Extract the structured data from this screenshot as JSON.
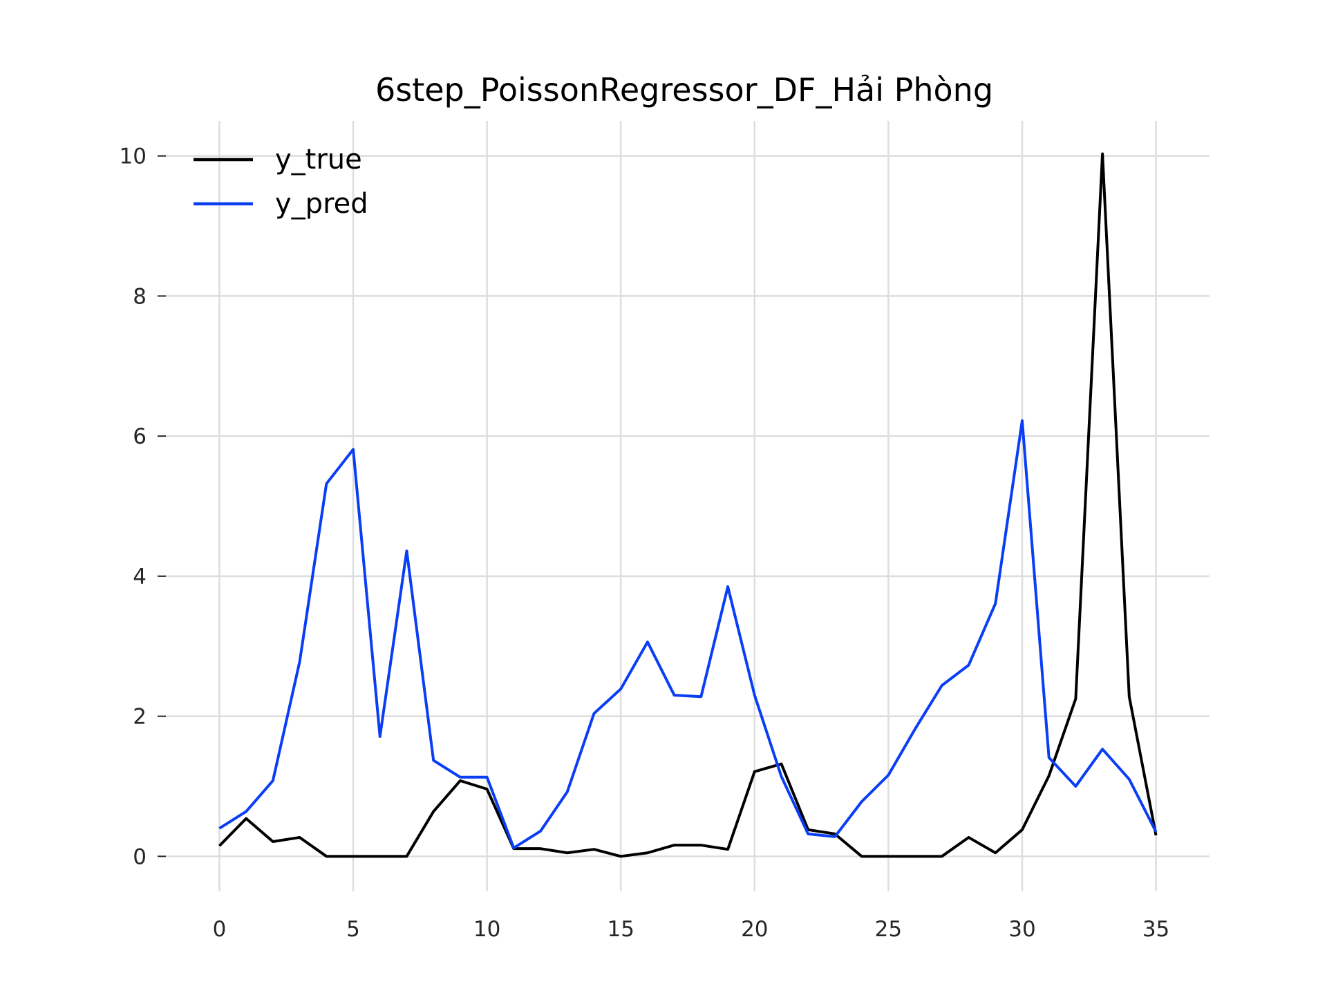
{
  "chart_data": {
    "type": "line",
    "title": "6step_PoissonRegressor_DF_Hải Phòng",
    "xlabel": "",
    "ylabel": "",
    "xlim": [
      -2,
      37
    ],
    "ylim": [
      -0.5,
      10.5
    ],
    "x_ticks": [
      0,
      5,
      10,
      15,
      20,
      25,
      30,
      35
    ],
    "y_ticks": [
      0,
      2,
      4,
      6,
      8,
      10
    ],
    "grid": true,
    "legend_position": "top-left",
    "x": [
      0,
      1,
      2,
      3,
      4,
      5,
      6,
      7,
      8,
      9,
      10,
      11,
      12,
      13,
      14,
      15,
      16,
      17,
      18,
      19,
      20,
      21,
      22,
      23,
      24,
      25,
      26,
      27,
      28,
      29,
      30,
      31,
      32,
      33,
      34,
      35
    ],
    "series": [
      {
        "name": "y_true",
        "color": "#000000",
        "values": [
          0.15,
          0.54,
          0.21,
          0.27,
          0.0,
          0.0,
          0.0,
          0.0,
          0.64,
          1.08,
          0.96,
          0.11,
          0.11,
          0.05,
          0.1,
          0.0,
          0.05,
          0.16,
          0.16,
          0.1,
          1.21,
          1.32,
          0.38,
          0.32,
          0.0,
          0.0,
          0.0,
          0.0,
          0.27,
          0.05,
          0.38,
          1.15,
          2.25,
          10.03,
          2.28,
          0.3
        ]
      },
      {
        "name": "y_pred",
        "color": "#0a3ef5",
        "values": [
          0.4,
          0.64,
          1.08,
          2.78,
          5.32,
          5.81,
          1.71,
          4.36,
          1.37,
          1.13,
          1.13,
          0.12,
          0.36,
          0.92,
          2.04,
          2.39,
          3.06,
          2.3,
          2.28,
          3.85,
          2.3,
          1.14,
          0.32,
          0.28,
          0.78,
          1.16,
          1.82,
          2.44,
          2.73,
          3.61,
          6.22,
          1.41,
          1.0,
          1.53,
          1.1,
          0.35
        ]
      }
    ]
  }
}
